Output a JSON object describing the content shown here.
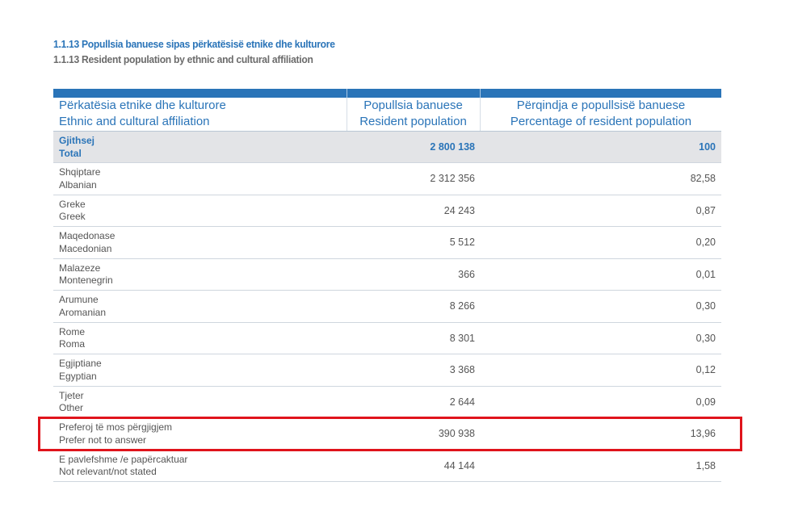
{
  "title_sq": "1.1.13 Popullsia banuese sipas përkatësisë etnike dhe kulturore",
  "title_en": "1.1.13 Resident population by ethnic and cultural affiliation",
  "headers": {
    "col1_sq": "Përkatësia etnike dhe kulturore",
    "col1_en": "Ethnic and cultural affiliation",
    "col2_sq": "Popullsia banuese",
    "col2_en": "Resident population",
    "col3_sq": "Përqindja e popullsisë banuese",
    "col3_en": "Percentage of resident population"
  },
  "rows": [
    {
      "sq": "Gjithsej",
      "en": "Total",
      "population": "2 800 138",
      "percent": "100"
    },
    {
      "sq": "Shqiptare",
      "en": "Albanian",
      "population": "2 312 356",
      "percent": "82,58"
    },
    {
      "sq": "Greke",
      "en": "Greek",
      "population": "24 243",
      "percent": "0,87"
    },
    {
      "sq": "Maqedonase",
      "en": "Macedonian",
      "population": "5 512",
      "percent": "0,20"
    },
    {
      "sq": "Malazeze",
      "en": "Montenegrin",
      "population": "366",
      "percent": "0,01"
    },
    {
      "sq": "Arumune",
      "en": "Aromanian",
      "population": "8 266",
      "percent": "0,30"
    },
    {
      "sq": "Rome",
      "en": "Roma",
      "population": "8 301",
      "percent": "0,30"
    },
    {
      "sq": "Egjiptiane",
      "en": "Egyptian",
      "population": "3 368",
      "percent": "0,12"
    },
    {
      "sq": "Tjeter",
      "en": "Other",
      "population": "2 644",
      "percent": "0,09"
    },
    {
      "sq": "Preferoj të mos përgjigjem",
      "en": "Prefer not to answer",
      "population": "390 938",
      "percent": "13,96"
    },
    {
      "sq": "E pavlefshme /e papërcaktuar",
      "en": "Not relevant/not stated",
      "population": "44 144",
      "percent": "1,58"
    }
  ],
  "highlight_color": "#e0141c",
  "accent_color": "#2a74b8"
}
